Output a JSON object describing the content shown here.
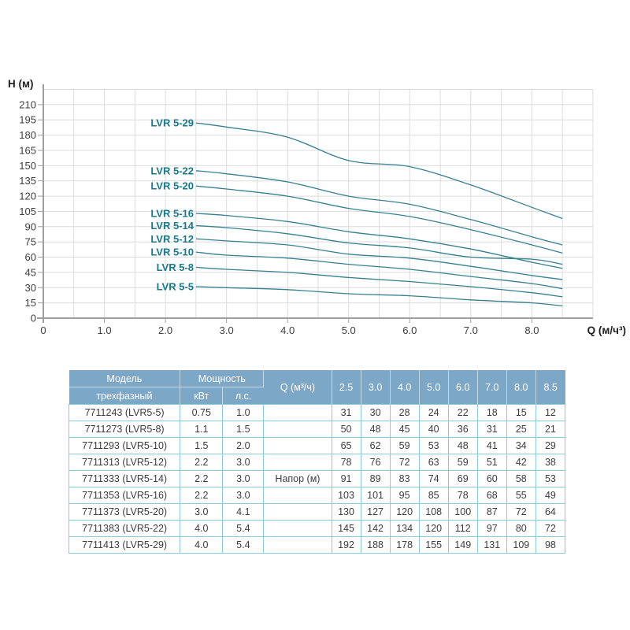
{
  "colors": {
    "curve": "#35808f",
    "curve_label": "#17798c",
    "grid": "#dcdcdc",
    "axis": "#9e9e9e",
    "tick_text": "#3d3d3d",
    "axis_title": "#1f1f1f",
    "table_header_bg": "#7da7c6",
    "table_border": "#8accd6"
  },
  "chart": {
    "y_axis_title": "H (м)",
    "x_axis_title": "Q (м/ч³)",
    "x_tick_labels": [
      "0",
      "1.0",
      "2.0",
      "3.0",
      "4.0",
      "5.0",
      "6.0",
      "7.0",
      "8.0"
    ],
    "y_tick_min": 0,
    "y_tick_max": 210,
    "y_tick_step": 15
  },
  "chart_data": {
    "type": "line",
    "title": "",
    "xlabel": "Q (м/ч³)",
    "ylabel": "H (м)",
    "xlim": [
      0,
      9.0
    ],
    "ylim": [
      0,
      225
    ],
    "grid": true,
    "legend_position": "inline-left-of-curves",
    "x": [
      2.5,
      3.0,
      4.0,
      5.0,
      6.0,
      7.0,
      8.0,
      8.5
    ],
    "series": [
      {
        "name": "LVR 5-29",
        "values": [
          192,
          188,
          178,
          155,
          149,
          131,
          109,
          98
        ]
      },
      {
        "name": "LVR 5-22",
        "values": [
          145,
          142,
          134,
          120,
          112,
          97,
          80,
          72
        ]
      },
      {
        "name": "LVR 5-20",
        "values": [
          130,
          127,
          120,
          108,
          100,
          87,
          72,
          64
        ]
      },
      {
        "name": "LVR 5-16",
        "values": [
          103,
          101,
          95,
          85,
          78,
          68,
          55,
          49
        ]
      },
      {
        "name": "LVR 5-14",
        "values": [
          91,
          89,
          83,
          74,
          69,
          60,
          58,
          53
        ]
      },
      {
        "name": "LVR 5-12",
        "values": [
          78,
          76,
          72,
          63,
          59,
          51,
          42,
          38
        ]
      },
      {
        "name": "LVR 5-10",
        "values": [
          65,
          62,
          59,
          53,
          48,
          41,
          34,
          29
        ]
      },
      {
        "name": "LVR 5-8",
        "values": [
          50,
          48,
          45,
          40,
          36,
          31,
          25,
          21
        ]
      },
      {
        "name": "LVR 5-5",
        "values": [
          31,
          30,
          28,
          24,
          22,
          18,
          15,
          12
        ]
      }
    ]
  },
  "table": {
    "header": {
      "model": "Модель",
      "model_sub": "трехфазный",
      "power": "Мощность",
      "kw": "кВт",
      "hp": "л.с.",
      "q": "Q (м³/ч)",
      "q_values": [
        "2.5",
        "3.0",
        "4.0",
        "5.0",
        "6.0",
        "7.0",
        "8.0",
        "8.5"
      ]
    },
    "napor_label": "Напор (м)",
    "rows": [
      {
        "model": "7711243 (LVR5-5)",
        "kw": "0.75",
        "hp": "1.0",
        "values": [
          31,
          30,
          28,
          24,
          22,
          18,
          15,
          12
        ]
      },
      {
        "model": "7711273 (LVR5-8)",
        "kw": "1.1",
        "hp": "1.5",
        "values": [
          50,
          48,
          45,
          40,
          36,
          31,
          25,
          21
        ]
      },
      {
        "model": "7711293 (LVR5-10)",
        "kw": "1.5",
        "hp": "2.0",
        "values": [
          65,
          62,
          59,
          53,
          48,
          41,
          34,
          29
        ]
      },
      {
        "model": "7711313 (LVR5-12)",
        "kw": "2.2",
        "hp": "3.0",
        "values": [
          78,
          76,
          72,
          63,
          59,
          51,
          42,
          38
        ]
      },
      {
        "model": "7711333 (LVR5-14)",
        "kw": "2.2",
        "hp": "3.0",
        "values": [
          91,
          89,
          83,
          74,
          69,
          60,
          58,
          53
        ]
      },
      {
        "model": "7711353 (LVR5-16)",
        "kw": "2.2",
        "hp": "3.0",
        "values": [
          103,
          101,
          95,
          85,
          78,
          68,
          55,
          49
        ]
      },
      {
        "model": "7711373 (LVR5-20)",
        "kw": "3.0",
        "hp": "4.1",
        "values": [
          130,
          127,
          120,
          108,
          100,
          87,
          72,
          64
        ]
      },
      {
        "model": "7711383 (LVR5-22)",
        "kw": "4.0",
        "hp": "5.4",
        "values": [
          145,
          142,
          134,
          120,
          112,
          97,
          80,
          72
        ]
      },
      {
        "model": "7711413 (LVR5-29)",
        "kw": "4.0",
        "hp": "5.4",
        "values": [
          192,
          188,
          178,
          155,
          149,
          131,
          109,
          98
        ]
      }
    ]
  }
}
